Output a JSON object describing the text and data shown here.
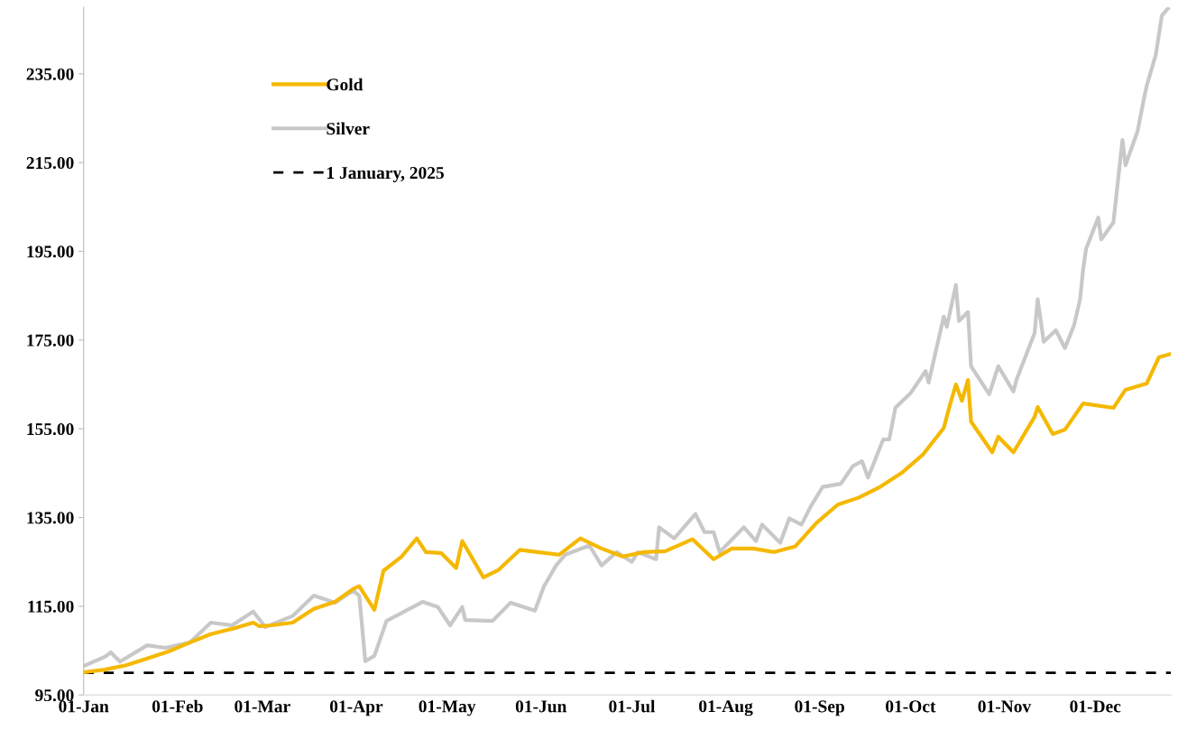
{
  "chart_data": {
    "type": "line",
    "ylim": [
      95,
      250
    ],
    "yticks": [
      {
        "value": 95,
        "label": "95.00"
      },
      {
        "value": 115,
        "label": "115.00"
      },
      {
        "value": 135,
        "label": "135.00"
      },
      {
        "value": 155,
        "label": "155.00"
      },
      {
        "value": 175,
        "label": "175.00"
      },
      {
        "value": 195,
        "label": "195.00"
      },
      {
        "value": 215,
        "label": "215.00"
      },
      {
        "value": 235,
        "label": "235.00"
      }
    ],
    "xlim": [
      "2025-01-01",
      "2025-12-26"
    ],
    "xticks": [
      {
        "value": "2025-01-01",
        "label": "01-Jan"
      },
      {
        "value": "2025-02-01",
        "label": "01-Feb"
      },
      {
        "value": "2025-03-01",
        "label": "01-Mar"
      },
      {
        "value": "2025-04-01",
        "label": "01-Apr"
      },
      {
        "value": "2025-05-01",
        "label": "01-May"
      },
      {
        "value": "2025-06-01",
        "label": "01-Jun"
      },
      {
        "value": "2025-07-01",
        "label": "01-Jul"
      },
      {
        "value": "2025-08-01",
        "label": "01-Aug"
      },
      {
        "value": "2025-09-01",
        "label": "01-Sep"
      },
      {
        "value": "2025-10-01",
        "label": "01-Oct"
      },
      {
        "value": "2025-11-01",
        "label": "01-Nov"
      },
      {
        "value": "2025-12-01",
        "label": "01-Dec"
      }
    ],
    "grid": false,
    "legend": "top left",
    "line_style": "solid",
    "marker": "none",
    "ref_lines": [
      {
        "axis": "y",
        "value": 100,
        "label": "1 January, 2025",
        "color": "#000000",
        "line_style": "dashed"
      }
    ],
    "series": [
      {
        "name": "Gold",
        "color": "#f5b800",
        "x": [
          "2025-01-01",
          "2025-01-08",
          "2025-01-15",
          "2025-01-22",
          "2025-01-29",
          "2025-02-05",
          "2025-02-12",
          "2025-02-19",
          "2025-02-26",
          "2025-02-28",
          "2025-03-04",
          "2025-03-11",
          "2025-03-18",
          "2025-03-25",
          "2025-03-31",
          "2025-04-02",
          "2025-04-07",
          "2025-04-10",
          "2025-04-16",
          "2025-04-21",
          "2025-04-24",
          "2025-04-29",
          "2025-05-04",
          "2025-05-06",
          "2025-05-13",
          "2025-05-18",
          "2025-05-25",
          "2025-05-31",
          "2025-06-07",
          "2025-06-14",
          "2025-06-21",
          "2025-06-28",
          "2025-07-05",
          "2025-07-12",
          "2025-07-21",
          "2025-07-28",
          "2025-08-03",
          "2025-08-10",
          "2025-08-17",
          "2025-08-24",
          "2025-08-31",
          "2025-09-07",
          "2025-09-14",
          "2025-09-21",
          "2025-09-28",
          "2025-10-05",
          "2025-10-12",
          "2025-10-14",
          "2025-10-16",
          "2025-10-18",
          "2025-10-20",
          "2025-10-21",
          "2025-10-28",
          "2025-10-30",
          "2025-11-04",
          "2025-11-11",
          "2025-11-12",
          "2025-11-17",
          "2025-11-21",
          "2025-11-27",
          "2025-12-07",
          "2025-12-11",
          "2025-12-18",
          "2025-12-22",
          "2025-12-26"
        ],
        "values": [
          100.1,
          100.7,
          101.7,
          103.2,
          104.8,
          106.8,
          108.7,
          109.9,
          111.3,
          110.5,
          110.7,
          111.3,
          114.4,
          116.0,
          118.9,
          119.5,
          114.2,
          123.0,
          126.2,
          130.3,
          127.2,
          127.0,
          123.6,
          129.7,
          121.5,
          123.2,
          127.7,
          127.2,
          126.6,
          130.3,
          128.0,
          126.2,
          127.2,
          127.4,
          130.1,
          125.6,
          128.0,
          128.0,
          127.2,
          128.5,
          133.8,
          137.9,
          139.5,
          141.9,
          145.0,
          149.1,
          155.2,
          160.3,
          165.0,
          161.3,
          166.0,
          156.6,
          149.7,
          153.2,
          149.7,
          157.7,
          159.9,
          153.8,
          154.8,
          160.7,
          159.7,
          163.8,
          165.2,
          171.1,
          171.9
        ]
      },
      {
        "name": "Silver",
        "color": "#c8c8c8",
        "x": [
          "2025-01-01",
          "2025-01-08",
          "2025-01-10",
          "2025-01-13",
          "2025-01-22",
          "2025-01-28",
          "2025-02-05",
          "2025-02-12",
          "2025-02-19",
          "2025-02-26",
          "2025-03-02",
          "2025-03-11",
          "2025-03-18",
          "2025-03-25",
          "2025-03-31",
          "2025-04-02",
          "2025-04-04",
          "2025-04-07",
          "2025-04-11",
          "2025-04-23",
          "2025-04-28",
          "2025-05-02",
          "2025-05-06",
          "2025-05-07",
          "2025-05-16",
          "2025-05-22",
          "2025-05-30",
          "2025-06-02",
          "2025-06-06",
          "2025-06-09",
          "2025-06-17",
          "2025-06-21",
          "2025-06-26",
          "2025-07-01",
          "2025-07-03",
          "2025-07-09",
          "2025-07-10",
          "2025-07-15",
          "2025-07-22",
          "2025-07-25",
          "2025-07-28",
          "2025-07-30",
          "2025-08-07",
          "2025-08-11",
          "2025-08-13",
          "2025-08-19",
          "2025-08-22",
          "2025-08-26",
          "2025-08-29",
          "2025-09-02",
          "2025-09-08",
          "2025-09-12",
          "2025-09-15",
          "2025-09-17",
          "2025-09-22",
          "2025-09-24",
          "2025-09-26",
          "2025-10-01",
          "2025-10-06",
          "2025-10-07",
          "2025-10-12",
          "2025-10-13",
          "2025-10-16",
          "2025-10-17",
          "2025-10-20",
          "2025-10-21",
          "2025-10-27",
          "2025-10-30",
          "2025-11-04",
          "2025-11-05",
          "2025-11-11",
          "2025-11-12",
          "2025-11-14",
          "2025-11-18",
          "2025-11-21",
          "2025-11-24",
          "2025-11-26",
          "2025-11-27",
          "2025-11-28",
          "2025-12-02",
          "2025-12-03",
          "2025-12-07",
          "2025-12-10",
          "2025-12-11",
          "2025-12-15",
          "2025-12-17",
          "2025-12-18",
          "2025-12-21",
          "2025-12-23",
          "2025-12-25"
        ],
        "values": [
          101.5,
          103.6,
          104.6,
          102.5,
          106.2,
          105.6,
          106.8,
          111.3,
          110.7,
          113.8,
          110.3,
          112.8,
          117.4,
          115.8,
          118.5,
          117.4,
          102.6,
          103.8,
          111.7,
          116.0,
          114.8,
          110.7,
          114.8,
          111.9,
          111.7,
          115.8,
          114.0,
          119.5,
          124.2,
          126.6,
          128.7,
          124.2,
          127.2,
          125.0,
          127.2,
          125.6,
          132.8,
          130.3,
          135.8,
          131.7,
          131.7,
          127.2,
          132.8,
          129.7,
          133.4,
          129.3,
          134.8,
          133.4,
          137.4,
          141.9,
          142.6,
          146.6,
          147.7,
          144.0,
          152.6,
          152.6,
          159.7,
          163.0,
          168.0,
          165.4,
          180.3,
          178.0,
          187.4,
          179.3,
          181.3,
          169.1,
          162.8,
          169.1,
          163.4,
          166.0,
          176.6,
          184.2,
          174.6,
          177.2,
          173.2,
          178.3,
          184.2,
          190.9,
          195.6,
          202.6,
          197.7,
          201.5,
          220.1,
          214.4,
          222.1,
          229.1,
          232.3,
          239.3,
          248.1,
          249.7
        ]
      }
    ]
  }
}
